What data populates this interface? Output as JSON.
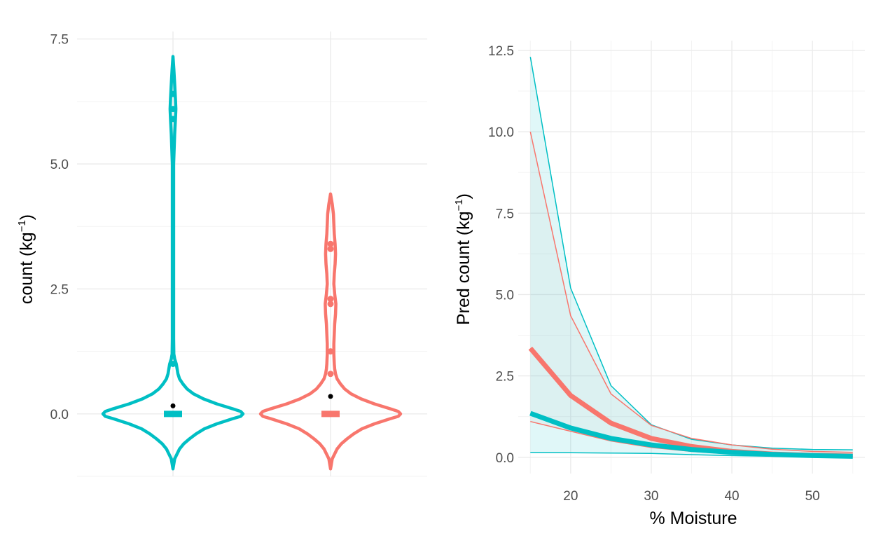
{
  "chart_data": [
    {
      "type": "violin",
      "ylabel": "count (kg",
      "ylabel_sup": "−1",
      "ylabel_close": ")",
      "xlabel": "",
      "ylim": [
        -1.25,
        7.65
      ],
      "yticks": [
        0.0,
        2.5,
        5.0,
        7.5
      ],
      "ytick_labels": [
        "0.0",
        "2.5",
        "5.0",
        "7.5"
      ],
      "grid": true,
      "legend": "none",
      "groups": [
        {
          "color": "#00bfc4",
          "mean": 0.16,
          "median": 0.0,
          "min": -1.1,
          "max": 7.15,
          "outline": [
            [
              -1.1,
              0.0
            ],
            [
              -1.0,
              0.01
            ],
            [
              -0.9,
              0.02
            ],
            [
              -0.8,
              0.05
            ],
            [
              -0.7,
              0.08
            ],
            [
              -0.6,
              0.13
            ],
            [
              -0.5,
              0.2
            ],
            [
              -0.4,
              0.28
            ],
            [
              -0.3,
              0.38
            ],
            [
              -0.2,
              0.53
            ],
            [
              -0.1,
              0.72
            ],
            [
              -0.05,
              0.82
            ],
            [
              0.0,
              0.85
            ],
            [
              0.05,
              0.82
            ],
            [
              0.1,
              0.73
            ],
            [
              0.2,
              0.53
            ],
            [
              0.3,
              0.37
            ],
            [
              0.4,
              0.25
            ],
            [
              0.5,
              0.17
            ],
            [
              0.6,
              0.12
            ],
            [
              0.7,
              0.08
            ],
            [
              0.8,
              0.06
            ],
            [
              0.9,
              0.05
            ],
            [
              1.0,
              0.04
            ],
            [
              1.1,
              0.02
            ],
            [
              1.2,
              0.01
            ],
            [
              1.5,
              0.008
            ],
            [
              2.0,
              0.008
            ],
            [
              3.0,
              0.008
            ],
            [
              4.0,
              0.008
            ],
            [
              5.0,
              0.008
            ],
            [
              5.6,
              0.02
            ],
            [
              5.9,
              0.03
            ],
            [
              6.1,
              0.035
            ],
            [
              6.3,
              0.03
            ],
            [
              6.6,
              0.02
            ],
            [
              6.9,
              0.01
            ],
            [
              7.15,
              0.0
            ]
          ],
          "points": [
            0.0,
            1.0,
            5.9,
            6.1,
            6.4
          ]
        },
        {
          "color": "#f8766d",
          "mean": 0.35,
          "median": 0.0,
          "min": -1.1,
          "max": 4.4,
          "outline": [
            [
              -1.1,
              0.0
            ],
            [
              -1.0,
              0.01
            ],
            [
              -0.9,
              0.02
            ],
            [
              -0.8,
              0.05
            ],
            [
              -0.7,
              0.08
            ],
            [
              -0.6,
              0.13
            ],
            [
              -0.5,
              0.2
            ],
            [
              -0.4,
              0.28
            ],
            [
              -0.3,
              0.38
            ],
            [
              -0.2,
              0.53
            ],
            [
              -0.1,
              0.72
            ],
            [
              -0.05,
              0.82
            ],
            [
              0.0,
              0.85
            ],
            [
              0.05,
              0.82
            ],
            [
              0.1,
              0.73
            ],
            [
              0.2,
              0.53
            ],
            [
              0.3,
              0.37
            ],
            [
              0.4,
              0.25
            ],
            [
              0.5,
              0.17
            ],
            [
              0.6,
              0.12
            ],
            [
              0.7,
              0.08
            ],
            [
              0.8,
              0.06
            ],
            [
              0.9,
              0.05
            ],
            [
              1.0,
              0.045
            ],
            [
              1.2,
              0.04
            ],
            [
              1.4,
              0.04
            ],
            [
              1.6,
              0.045
            ],
            [
              1.8,
              0.05
            ],
            [
              2.0,
              0.06
            ],
            [
              2.2,
              0.065
            ],
            [
              2.4,
              0.05
            ],
            [
              2.6,
              0.04
            ],
            [
              2.8,
              0.045
            ],
            [
              3.0,
              0.055
            ],
            [
              3.2,
              0.06
            ],
            [
              3.4,
              0.055
            ],
            [
              3.6,
              0.045
            ],
            [
              3.8,
              0.04
            ],
            [
              4.0,
              0.035
            ],
            [
              4.2,
              0.02
            ],
            [
              4.4,
              0.0
            ]
          ],
          "points": [
            0.0,
            0.8,
            1.25,
            2.2,
            2.3,
            3.3,
            3.4
          ]
        }
      ]
    },
    {
      "type": "line",
      "xlabel": "% Moisture",
      "ylabel": "Pred count (kg",
      "ylabel_sup": "−1",
      "ylabel_close": ")",
      "xlim": [
        13.5,
        56.5
      ],
      "ylim": [
        -0.5,
        12.8
      ],
      "xticks": [
        20,
        30,
        40,
        50
      ],
      "xtick_labels": [
        "20",
        "30",
        "40",
        "50"
      ],
      "yticks": [
        0.0,
        2.5,
        5.0,
        7.5,
        10.0,
        12.5
      ],
      "ytick_labels": [
        "0.0",
        "2.5",
        "5.0",
        "7.5",
        "10.0",
        "12.5"
      ],
      "grid": true,
      "legend": "none",
      "x": [
        15,
        20,
        25,
        30,
        35,
        40,
        45,
        50,
        55
      ],
      "series": [
        {
          "color": "#00bfc4",
          "fill": "#00bfc4",
          "values": [
            1.35,
            0.9,
            0.58,
            0.38,
            0.24,
            0.15,
            0.09,
            0.05,
            0.03
          ],
          "lower": [
            0.15,
            0.14,
            0.13,
            0.12,
            0.08,
            0.05,
            0.03,
            0.02,
            0.01
          ],
          "upper": [
            12.3,
            5.2,
            2.2,
            1.0,
            0.55,
            0.38,
            0.28,
            0.24,
            0.23
          ]
        },
        {
          "color": "#f8766d",
          "fill": "#c9c9c9",
          "values": [
            3.35,
            1.9,
            1.05,
            0.58,
            0.33,
            0.18,
            0.1,
            0.06,
            0.04
          ],
          "lower": [
            1.1,
            0.8,
            0.5,
            0.3,
            0.18,
            0.1,
            0.06,
            0.04,
            0.02
          ],
          "upper": [
            10.0,
            4.35,
            1.95,
            0.98,
            0.58,
            0.38,
            0.25,
            0.18,
            0.15
          ]
        }
      ]
    }
  ]
}
